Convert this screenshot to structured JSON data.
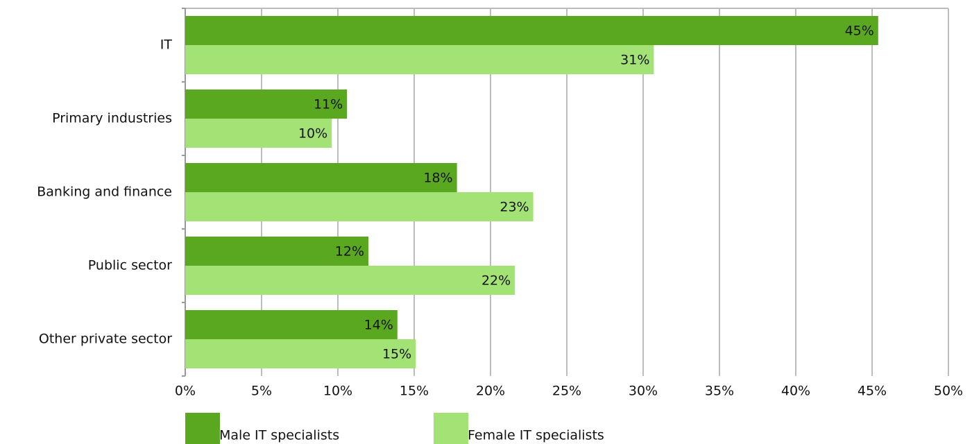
{
  "chart_data": {
    "type": "bar",
    "orientation": "horizontal",
    "categories": [
      "IT",
      "Primary industries",
      "Banking and finance",
      "Public sector",
      "Other private sector"
    ],
    "series": [
      {
        "name": "Male IT specialists",
        "color": "#5aa81f",
        "values": [
          45.4,
          10.6,
          17.8,
          12.0,
          13.9
        ],
        "value_labels": [
          "45%",
          "11%",
          "18%",
          "12%",
          "14%"
        ]
      },
      {
        "name": "Female IT specialists",
        "color": "#a3e275",
        "values": [
          30.7,
          9.6,
          22.8,
          21.6,
          15.1
        ],
        "value_labels": [
          "31%",
          "10%",
          "23%",
          "22%",
          "15%"
        ]
      }
    ],
    "xlim": [
      0,
      50
    ],
    "xticks": [
      {
        "value": 0,
        "label": "0%"
      },
      {
        "value": 5,
        "label": "5%"
      },
      {
        "value": 10,
        "label": "10%"
      },
      {
        "value": 15,
        "label": "15%"
      },
      {
        "value": 20,
        "label": "20%"
      },
      {
        "value": 25,
        "label": "25%"
      },
      {
        "value": 30,
        "label": "30%"
      },
      {
        "value": 35,
        "label": "35%"
      },
      {
        "value": 40,
        "label": "40%"
      },
      {
        "value": 45,
        "label": "45%"
      },
      {
        "value": 50,
        "label": "50%"
      }
    ],
    "grid": true,
    "legend": "bottom"
  }
}
